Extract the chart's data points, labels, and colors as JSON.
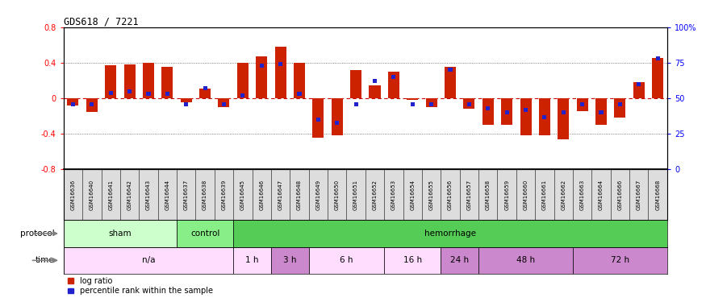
{
  "title": "GDS618 / 7221",
  "samples": [
    "GSM16636",
    "GSM16640",
    "GSM16641",
    "GSM16642",
    "GSM16643",
    "GSM16644",
    "GSM16637",
    "GSM16638",
    "GSM16639",
    "GSM16645",
    "GSM16646",
    "GSM16647",
    "GSM16648",
    "GSM16649",
    "GSM16650",
    "GSM16651",
    "GSM16652",
    "GSM16653",
    "GSM16654",
    "GSM16655",
    "GSM16656",
    "GSM16657",
    "GSM16658",
    "GSM16659",
    "GSM16660",
    "GSM16661",
    "GSM16662",
    "GSM16663",
    "GSM16664",
    "GSM16666",
    "GSM16667",
    "GSM16668"
  ],
  "log_ratio": [
    -0.08,
    -0.15,
    0.37,
    0.38,
    0.4,
    0.35,
    -0.04,
    0.11,
    -0.1,
    0.4,
    0.47,
    0.58,
    0.4,
    -0.44,
    -0.42,
    0.32,
    0.15,
    0.3,
    -0.02,
    -0.1,
    0.35,
    -0.12,
    -0.3,
    -0.3,
    -0.42,
    -0.42,
    -0.46,
    -0.14,
    -0.3,
    -0.22,
    0.18,
    0.45
  ],
  "percentile": [
    46,
    46,
    54,
    55,
    53,
    53,
    46,
    57,
    46,
    52,
    73,
    74,
    53,
    35,
    33,
    46,
    62,
    65,
    46,
    46,
    70,
    46,
    43,
    40,
    42,
    37,
    40,
    46,
    40,
    46,
    60,
    78
  ],
  "protocol_groups": [
    {
      "label": "sham",
      "start": 0,
      "end": 6,
      "color": "#ccffcc"
    },
    {
      "label": "control",
      "start": 6,
      "end": 9,
      "color": "#88ee88"
    },
    {
      "label": "hemorrhage",
      "start": 9,
      "end": 32,
      "color": "#55cc55"
    }
  ],
  "time_groups": [
    {
      "label": "n/a",
      "start": 0,
      "end": 9,
      "color": "#ffddff"
    },
    {
      "label": "1 h",
      "start": 9,
      "end": 11,
      "color": "#ffddff"
    },
    {
      "label": "3 h",
      "start": 11,
      "end": 13,
      "color": "#cc88cc"
    },
    {
      "label": "6 h",
      "start": 13,
      "end": 17,
      "color": "#ffddff"
    },
    {
      "label": "16 h",
      "start": 17,
      "end": 20,
      "color": "#ffddff"
    },
    {
      "label": "24 h",
      "start": 20,
      "end": 22,
      "color": "#cc88cc"
    },
    {
      "label": "48 h",
      "start": 22,
      "end": 27,
      "color": "#cc88cc"
    },
    {
      "label": "72 h",
      "start": 27,
      "end": 32,
      "color": "#cc88cc"
    }
  ],
  "bar_color": "#cc2200",
  "dot_color": "#2222cc",
  "ylim": [
    -0.8,
    0.8
  ],
  "yticks_left": [
    -0.8,
    -0.4,
    0.0,
    0.4,
    0.8
  ],
  "yticks_right_pct": [
    0,
    25,
    50,
    75,
    100
  ],
  "right_ylabels": [
    "0",
    "25",
    "50",
    "75",
    "100%"
  ],
  "zero_line_color": "#cc0000",
  "dotted_color": "#555555",
  "bg_color": "#ffffff",
  "label_bg_color": "#dddddd",
  "bar_width": 0.6
}
